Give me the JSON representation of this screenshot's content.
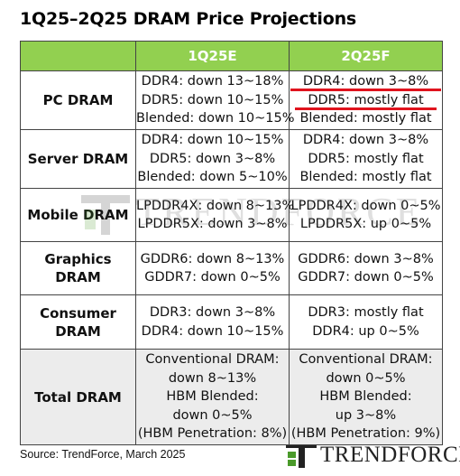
{
  "title": "1Q25–2Q25 DRAM Price Projections",
  "header": {
    "corner": "",
    "col1": "1Q25E",
    "col2": "2Q25F"
  },
  "rows": [
    {
      "category": [
        "PC DRAM"
      ],
      "q1": [
        "DDR4: down 13~18%",
        "DDR5: down 10~15%",
        "Blended: down 10~15%"
      ],
      "q2": [
        "DDR4: down 3~8%",
        "DDR5: mostly flat",
        "Blended: mostly flat"
      ]
    },
    {
      "category": [
        "Server DRAM"
      ],
      "q1": [
        "DDR4: down 10~15%",
        "DDR5: down 3~8%",
        "Blended: down 5~10%"
      ],
      "q2": [
        "DDR4: down 3~8%",
        "DDR5: mostly flat",
        "Blended: mostly flat"
      ]
    },
    {
      "category": [
        "Mobile DRAM"
      ],
      "q1": [
        "LPDDR4X: down 8~13%",
        "LPDDR5X: down 3~8%"
      ],
      "q2": [
        "LPDDR4X: down 0~5%",
        "LPDDR5X: up 0~5%"
      ]
    },
    {
      "category": [
        "Graphics DRAM"
      ],
      "q1": [
        "GDDR6: down 8~13%",
        "GDDR7: down 0~5%"
      ],
      "q2": [
        "GDDR6: down 3~8%",
        "GDDR7: down 0~5%"
      ]
    },
    {
      "category": [
        "Consumer",
        "DRAM"
      ],
      "q1": [
        "DDR3: down 3~8%",
        "DDR4: down 10~15%"
      ],
      "q2": [
        "DDR3: mostly flat",
        "DDR4: up 0~5%"
      ]
    },
    {
      "category": [
        "Total DRAM"
      ],
      "q1": [
        "Conventional DRAM:",
        "down 8~13%",
        "HBM Blended:",
        "down 0~5%",
        "(HBM Penetration: 8%)"
      ],
      "q2": [
        "Conventional DRAM:",
        "down 0~5%",
        "HBM Blended:",
        "up 3~8%",
        "(HBM Penetration: 9%)"
      ]
    }
  ],
  "source": "Source: TrendForce, March 2025",
  "brand": "TRENDFORCE",
  "watermark": "TRENDFORCE",
  "colors": {
    "header_bg": "#92d050",
    "highlight": "#e0141e",
    "total_bg": "#ececec",
    "logo_green": "#4a9a2a"
  }
}
